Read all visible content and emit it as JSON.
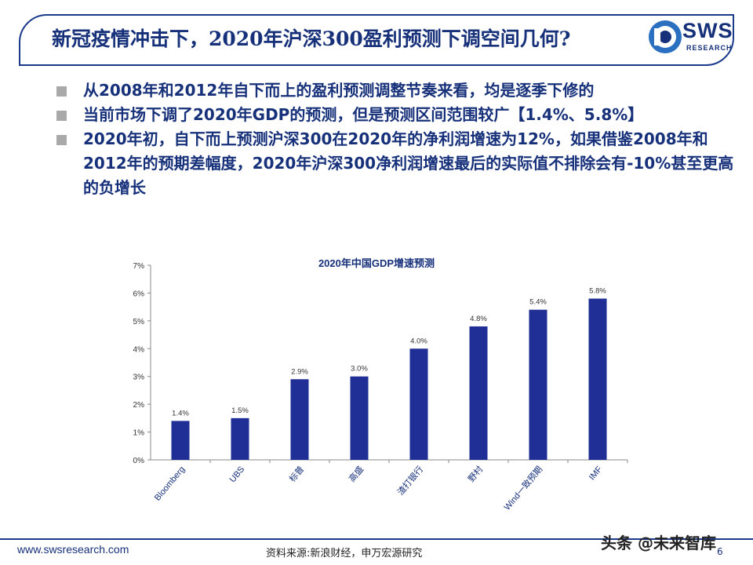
{
  "header": {
    "title": "新冠疫情冲击下，2020年沪深300盈利预测下调空间几何?",
    "logo_text": "SWS",
    "logo_subtext": "RESEARCH"
  },
  "bullets": [
    "从2008年和2012年自下而上的盈利预测调整节奏来看，均是逐季下修的",
    "当前市场下调了2020年GDP的预测，但是预测区间范围较广【1.4%、5.8%】",
    "2020年初，自下而上预测沪深300在2020年的净利润增速为12%，如果借鉴2008年和2012年的预期差幅度，2020年沪深300净利润增速最后的实际值不排除会有-10%甚至更高的负增长"
  ],
  "chart_data": {
    "type": "bar",
    "title": "2020年中国GDP增速预测",
    "categories": [
      "Bloomberg",
      "UBS",
      "标普",
      "高盛",
      "渣打银行",
      "野村",
      "Wind一致预期",
      "IMF"
    ],
    "values": [
      1.4,
      1.5,
      2.9,
      3.0,
      4.0,
      4.8,
      5.4,
      5.8
    ],
    "value_labels": [
      "1.4%",
      "1.5%",
      "2.9%",
      "3.0%",
      "4.0%",
      "4.8%",
      "5.4%",
      "5.8%"
    ],
    "ylim": [
      0,
      7
    ],
    "yticks": [
      "0%",
      "1%",
      "2%",
      "3%",
      "4%",
      "5%",
      "6%",
      "7%"
    ],
    "xlabel": "",
    "ylabel": "",
    "grid": false,
    "bar_color": "#1f2f95"
  },
  "footer": {
    "url": "www.swsresearch.com",
    "source": "资料来源:新浪财经，申万宏源研究",
    "page": "6",
    "watermark": "头条 @未来智库"
  },
  "colors": {
    "brand_blue": "#16307a"
  }
}
